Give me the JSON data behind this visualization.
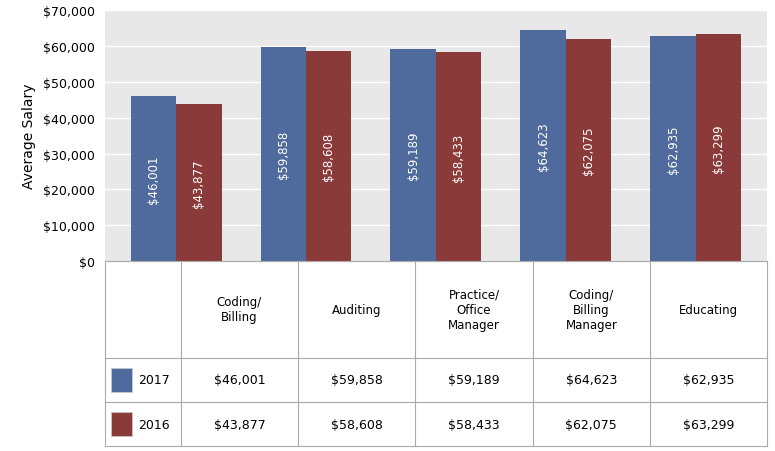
{
  "categories": [
    "Coding/\nBilling",
    "Auditing",
    "Practice/\nOffice\nManager",
    "Coding/\nBilling\nManager",
    "Educating"
  ],
  "values_2017": [
    46001,
    59858,
    59189,
    64623,
    62935
  ],
  "values_2016": [
    43877,
    58608,
    58433,
    62075,
    63299
  ],
  "labels_2017": [
    "$46,001",
    "$59,858",
    "$59,189",
    "$64,623",
    "$62,935"
  ],
  "labels_2016": [
    "$43,877",
    "$58,608",
    "$58,433",
    "$62,075",
    "$63,299"
  ],
  "color_2017": "#4F6B9E",
  "color_2016": "#8B3A3A",
  "ylabel": "Average Salary",
  "ylim_max": 70000,
  "ytick_step": 10000,
  "bar_width": 0.35,
  "legend_2017": "2017",
  "legend_2016": "2016",
  "table_2017": [
    "$46,001",
    "$59,858",
    "$59,189",
    "$64,623",
    "$62,935"
  ],
  "table_2016": [
    "$43,877",
    "$58,608",
    "$58,433",
    "$62,075",
    "$63,299"
  ],
  "chart_bg": "#E8E8E8",
  "grid_color": "#FFFFFF",
  "label_fontsize": 8.5,
  "tick_fontsize": 9,
  "table_fontsize": 9
}
